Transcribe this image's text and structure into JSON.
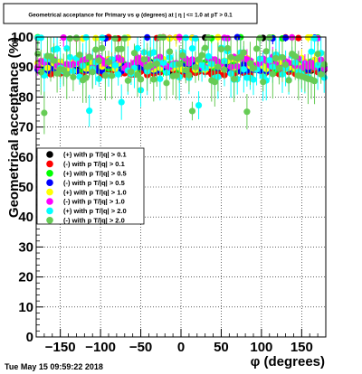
{
  "chart_data": {
    "type": "scatter",
    "title": "Geometrical acceptance for Primary vs φ (degrees) at | η | <= 1.0 at pT > 0.1",
    "xlabel": "φ (degrees)",
    "ylabel": "Geometrical acceptance (%)",
    "xlim": [
      -180,
      180
    ],
    "ylim": [
      0,
      100
    ],
    "x_ticks": [
      {
        "value": -150,
        "label": "−150"
      },
      {
        "value": -100,
        "label": "−100"
      },
      {
        "value": -50,
        "label": "−50"
      },
      {
        "value": 0,
        "label": "0"
      },
      {
        "value": 50,
        "label": "50"
      },
      {
        "value": 100,
        "label": "100"
      },
      {
        "value": 150,
        "label": "150"
      }
    ],
    "y_ticks": [
      {
        "value": 0,
        "label": "0"
      },
      {
        "value": 10,
        "label": "10"
      },
      {
        "value": 20,
        "label": "20"
      },
      {
        "value": 30,
        "label": "30"
      },
      {
        "value": 40,
        "label": "40"
      },
      {
        "value": 50,
        "label": "50"
      },
      {
        "value": 60,
        "label": "60"
      },
      {
        "value": 70,
        "label": "70"
      },
      {
        "value": 80,
        "label": "80"
      },
      {
        "value": 90,
        "label": "90"
      },
      {
        "value": 100,
        "label": "100"
      }
    ],
    "grid": true,
    "legend_position": "left-middle",
    "series": [
      {
        "name": "(+) with p T/|q| > 0.1",
        "color": "#000000",
        "marker": "circle",
        "mean": 89.5,
        "spread": 1.2,
        "err": 1.5
      },
      {
        "name": "(-) with p T/|q| > 0.1",
        "color": "#ff0000",
        "marker": "circle",
        "mean": 88.5,
        "spread": 1.2,
        "err": 1.5
      },
      {
        "name": "(+) with p T/|q| > 0.5",
        "color": "#00ff00",
        "marker": "circle",
        "mean": 90.5,
        "spread": 1.5,
        "err": 2.0
      },
      {
        "name": "(-) with p T/|q| > 0.5",
        "color": "#0000ff",
        "marker": "circle",
        "mean": 90.0,
        "spread": 1.5,
        "err": 2.0
      },
      {
        "name": "(+) with p T/|q| > 1.0",
        "color": "#ffff00",
        "marker": "circle",
        "mean": 91.0,
        "spread": 2.0,
        "err": 2.5
      },
      {
        "name": "(-) with p T/|q| > 1.0",
        "color": "#ff00ff",
        "marker": "circle",
        "mean": 91.5,
        "spread": 2.0,
        "err": 2.5
      },
      {
        "name": "(+) with p T/|q| > 2.0",
        "color": "#00ffff",
        "marker": "circle",
        "mean": 91.0,
        "spread": 5.5,
        "err": 6.0
      },
      {
        "name": "(-) with p T/|q| > 2.0",
        "color": "#66cc55",
        "marker": "circle",
        "mean": 90.5,
        "spread": 6.0,
        "err": 6.0
      }
    ],
    "points_per_series": 90
  },
  "footer": {
    "timestamp": "Tue May 15 09:59:22 2018"
  }
}
